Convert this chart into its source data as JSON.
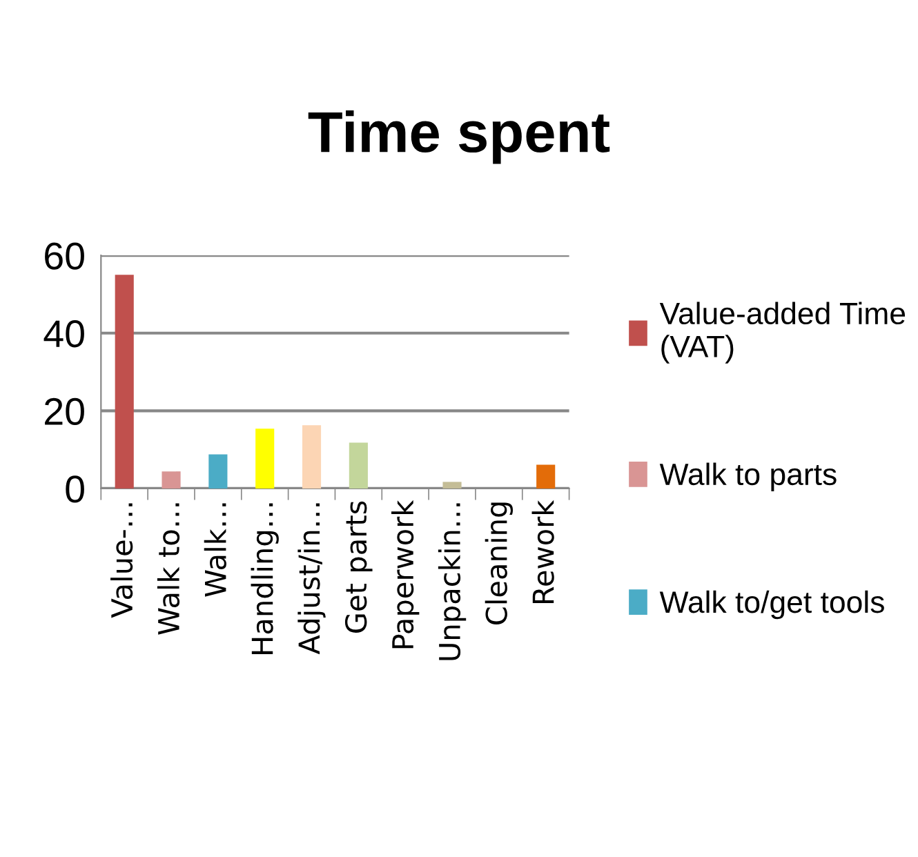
{
  "chart_data": {
    "type": "bar",
    "title": "Time spent",
    "categories": [
      "Value-…",
      "Walk to…",
      "Walk…",
      "Handling…",
      "Adjust/in…",
      "Get parts",
      "Paperwork",
      "Unpackin…",
      "Cleaning",
      "Rework"
    ],
    "series": [
      {
        "name": "Value-added Time (VAT)",
        "color": "#c0504d",
        "values": [
          55,
          null,
          null,
          null,
          null,
          null,
          null,
          null,
          null,
          null
        ]
      },
      {
        "name": "Walk to parts",
        "color": "#d99594",
        "values": [
          null,
          4.4,
          null,
          null,
          null,
          null,
          null,
          null,
          null,
          null
        ]
      },
      {
        "name": "Walk to/get tools",
        "color": "#4bacc6",
        "values": [
          null,
          null,
          8.8,
          null,
          null,
          null,
          null,
          null,
          null,
          null
        ]
      },
      {
        "color": "#ffff00",
        "values": [
          null,
          null,
          null,
          15.4,
          null,
          null,
          null,
          null,
          null,
          null
        ]
      },
      {
        "color": "#fcd5b4",
        "values": [
          null,
          null,
          null,
          null,
          16.3,
          null,
          null,
          null,
          null,
          null
        ]
      },
      {
        "color": "#c3d69b",
        "values": [
          null,
          null,
          null,
          null,
          null,
          11.8,
          null,
          null,
          null,
          null
        ]
      },
      {
        "color": "#8064a2",
        "values": [
          null,
          null,
          null,
          null,
          null,
          null,
          0,
          null,
          null,
          null
        ]
      },
      {
        "color": "#c4bd97",
        "values": [
          null,
          null,
          null,
          null,
          null,
          null,
          null,
          1.7,
          null,
          null
        ]
      },
      {
        "color": "#4f81bd",
        "values": [
          null,
          null,
          null,
          null,
          null,
          null,
          null,
          null,
          0,
          null
        ]
      },
      {
        "color": "#e36c09",
        "values": [
          null,
          null,
          null,
          null,
          null,
          null,
          null,
          null,
          null,
          6.1
        ]
      }
    ],
    "ylim": [
      0,
      60
    ],
    "yticks": [
      0,
      20,
      40,
      60
    ],
    "grid": "y",
    "legend": "right"
  }
}
